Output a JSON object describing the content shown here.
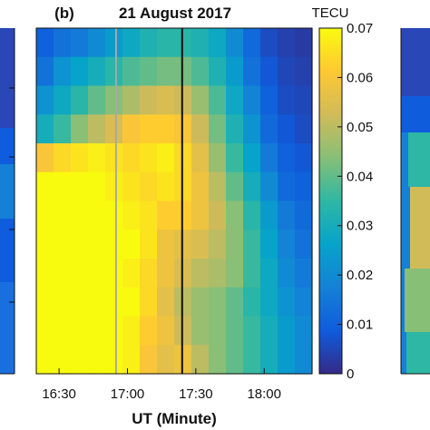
{
  "chart_data": {
    "type": "heatmap",
    "panel_label": "(b)",
    "title": "21 August 2017",
    "xlabel": "UT (Minute)",
    "x_ticks": [
      "16:30",
      "17:00",
      "17:30",
      "18:00"
    ],
    "x_tick_values": [
      990,
      1020,
      1050,
      1080
    ],
    "xlim": [
      980,
      1101
    ],
    "vertical_lines": [
      {
        "x": 1015,
        "color": "#a8a8a8"
      },
      {
        "x": 1044,
        "color": "#111111"
      }
    ],
    "colorbar": {
      "label": "TECU",
      "range": [
        0,
        0.07
      ],
      "ticks": [
        "0",
        "0.01",
        "0.02",
        "0.03",
        "0.04",
        "0.05",
        "0.06",
        "0.07"
      ],
      "tick_values": [
        0,
        0.01,
        0.02,
        0.03,
        0.04,
        0.05,
        0.06,
        0.07
      ]
    },
    "colormap": [
      "#352a87",
      "#0f5cdd",
      "#1481d6",
      "#06a4ca",
      "#2eb7a4",
      "#87bf77",
      "#d1bb59",
      "#fec832",
      "#f9fb0e"
    ],
    "grid_rows": [
      [
        0.01,
        0.014,
        0.016,
        0.02,
        0.024,
        0.028,
        0.032,
        0.034,
        0.034,
        0.032,
        0.028,
        0.02,
        0.012,
        0.006,
        0.004,
        0.003
      ],
      [
        0.014,
        0.022,
        0.026,
        0.03,
        0.034,
        0.038,
        0.04,
        0.042,
        0.042,
        0.038,
        0.032,
        0.024,
        0.014,
        0.008,
        0.005,
        0.004
      ],
      [
        0.022,
        0.028,
        0.034,
        0.04,
        0.044,
        0.048,
        0.052,
        0.054,
        0.052,
        0.046,
        0.038,
        0.028,
        0.018,
        0.01,
        0.006,
        0.005
      ],
      [
        0.03,
        0.036,
        0.044,
        0.05,
        0.054,
        0.06,
        0.062,
        0.062,
        0.06,
        0.052,
        0.042,
        0.032,
        0.022,
        0.012,
        0.008,
        0.006
      ],
      [
        0.06,
        0.064,
        0.066,
        0.068,
        0.066,
        0.064,
        0.066,
        0.068,
        0.064,
        0.056,
        0.046,
        0.036,
        0.026,
        0.016,
        0.01,
        0.008
      ],
      [
        0.07,
        0.07,
        0.07,
        0.07,
        0.068,
        0.066,
        0.064,
        0.066,
        0.064,
        0.058,
        0.05,
        0.04,
        0.03,
        0.02,
        0.012,
        0.01
      ],
      [
        0.07,
        0.07,
        0.07,
        0.07,
        0.07,
        0.068,
        0.066,
        0.062,
        0.062,
        0.058,
        0.052,
        0.044,
        0.034,
        0.024,
        0.016,
        0.012
      ],
      [
        0.07,
        0.07,
        0.07,
        0.07,
        0.07,
        0.07,
        0.066,
        0.058,
        0.056,
        0.054,
        0.05,
        0.044,
        0.036,
        0.026,
        0.018,
        0.014
      ],
      [
        0.07,
        0.07,
        0.07,
        0.07,
        0.07,
        0.068,
        0.064,
        0.058,
        0.054,
        0.05,
        0.048,
        0.044,
        0.036,
        0.028,
        0.02,
        0.016
      ],
      [
        0.07,
        0.07,
        0.07,
        0.07,
        0.07,
        0.07,
        0.064,
        0.056,
        0.05,
        0.046,
        0.044,
        0.04,
        0.034,
        0.028,
        0.022,
        0.018
      ],
      [
        0.07,
        0.07,
        0.07,
        0.07,
        0.07,
        0.068,
        0.062,
        0.058,
        0.052,
        0.046,
        0.044,
        0.04,
        0.036,
        0.03,
        0.024,
        0.02
      ],
      [
        0.07,
        0.07,
        0.07,
        0.07,
        0.07,
        0.068,
        0.06,
        0.056,
        0.058,
        0.05,
        0.044,
        0.04,
        0.036,
        0.03,
        0.024,
        0.02
      ]
    ]
  }
}
